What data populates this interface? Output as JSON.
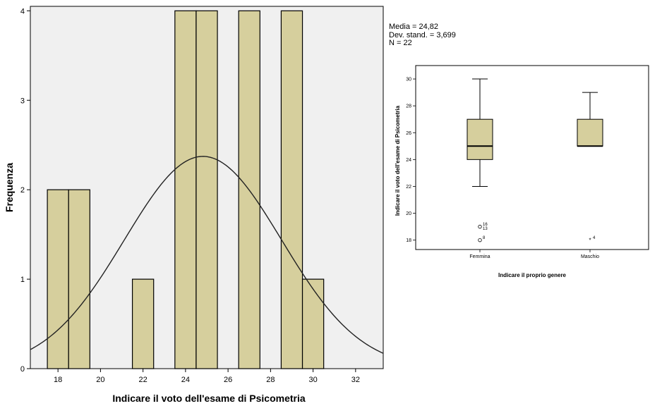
{
  "stats": {
    "mean_text": "Media = 24,82",
    "sd_text": "Dev. stand. = 3,699",
    "n_text": "N = 22"
  },
  "chart_data": [
    {
      "type": "bar",
      "subtype": "histogram",
      "title": "",
      "xlabel": "Indicare il voto dell'esame di Psicometria",
      "ylabel": "Frequenza",
      "xlim": [
        16.7,
        33.3
      ],
      "ylim": [
        0,
        4.05
      ],
      "xticks": [
        18,
        20,
        22,
        24,
        26,
        28,
        30,
        32
      ],
      "yticks": [
        0,
        1,
        2,
        3,
        4
      ],
      "bars": [
        {
          "x0": 17.5,
          "x1": 18.5,
          "value": 2
        },
        {
          "x0": 18.5,
          "x1": 19.5,
          "value": 2
        },
        {
          "x0": 21.5,
          "x1": 22.5,
          "value": 1
        },
        {
          "x0": 23.5,
          "x1": 24.5,
          "value": 4
        },
        {
          "x0": 24.5,
          "x1": 25.5,
          "value": 4
        },
        {
          "x0": 26.5,
          "x1": 27.5,
          "value": 4
        },
        {
          "x0": 28.5,
          "x1": 29.5,
          "value": 4
        },
        {
          "x0": 29.5,
          "x1": 30.5,
          "value": 1
        }
      ],
      "normal_curve": {
        "mean": 24.82,
        "sd": 3.699,
        "n": 22,
        "bin_width": 1
      },
      "bar_color": "#d6cf9d",
      "plot_background": "#f0f0f0"
    },
    {
      "type": "boxplot",
      "title": "",
      "xlabel": "Indicare il proprio genere",
      "ylabel": "Indicare il voto dell'esame di Psicometria",
      "ylim": [
        17.3,
        31.0
      ],
      "yticks": [
        18,
        20,
        22,
        24,
        26,
        28,
        30
      ],
      "categories": [
        "Femmina",
        "Maschio"
      ],
      "boxes": [
        {
          "category": "Femmina",
          "min": 22,
          "q1": 24,
          "median": 25,
          "q3": 27,
          "max": 30,
          "outliers": [
            {
              "value": 19,
              "label": "16",
              "marker": "circle"
            },
            {
              "value": 18.7,
              "label": "13",
              "marker": "circle"
            },
            {
              "value": 18,
              "label": "8",
              "marker": "circle"
            }
          ]
        },
        {
          "category": "Maschio",
          "min": 25,
          "q1": 25,
          "median": 25,
          "q3": 27,
          "max": 29,
          "outliers": [
            {
              "value": 18,
              "label": "4",
              "marker": "star"
            }
          ]
        }
      ],
      "box_color": "#d6cf9d"
    }
  ]
}
